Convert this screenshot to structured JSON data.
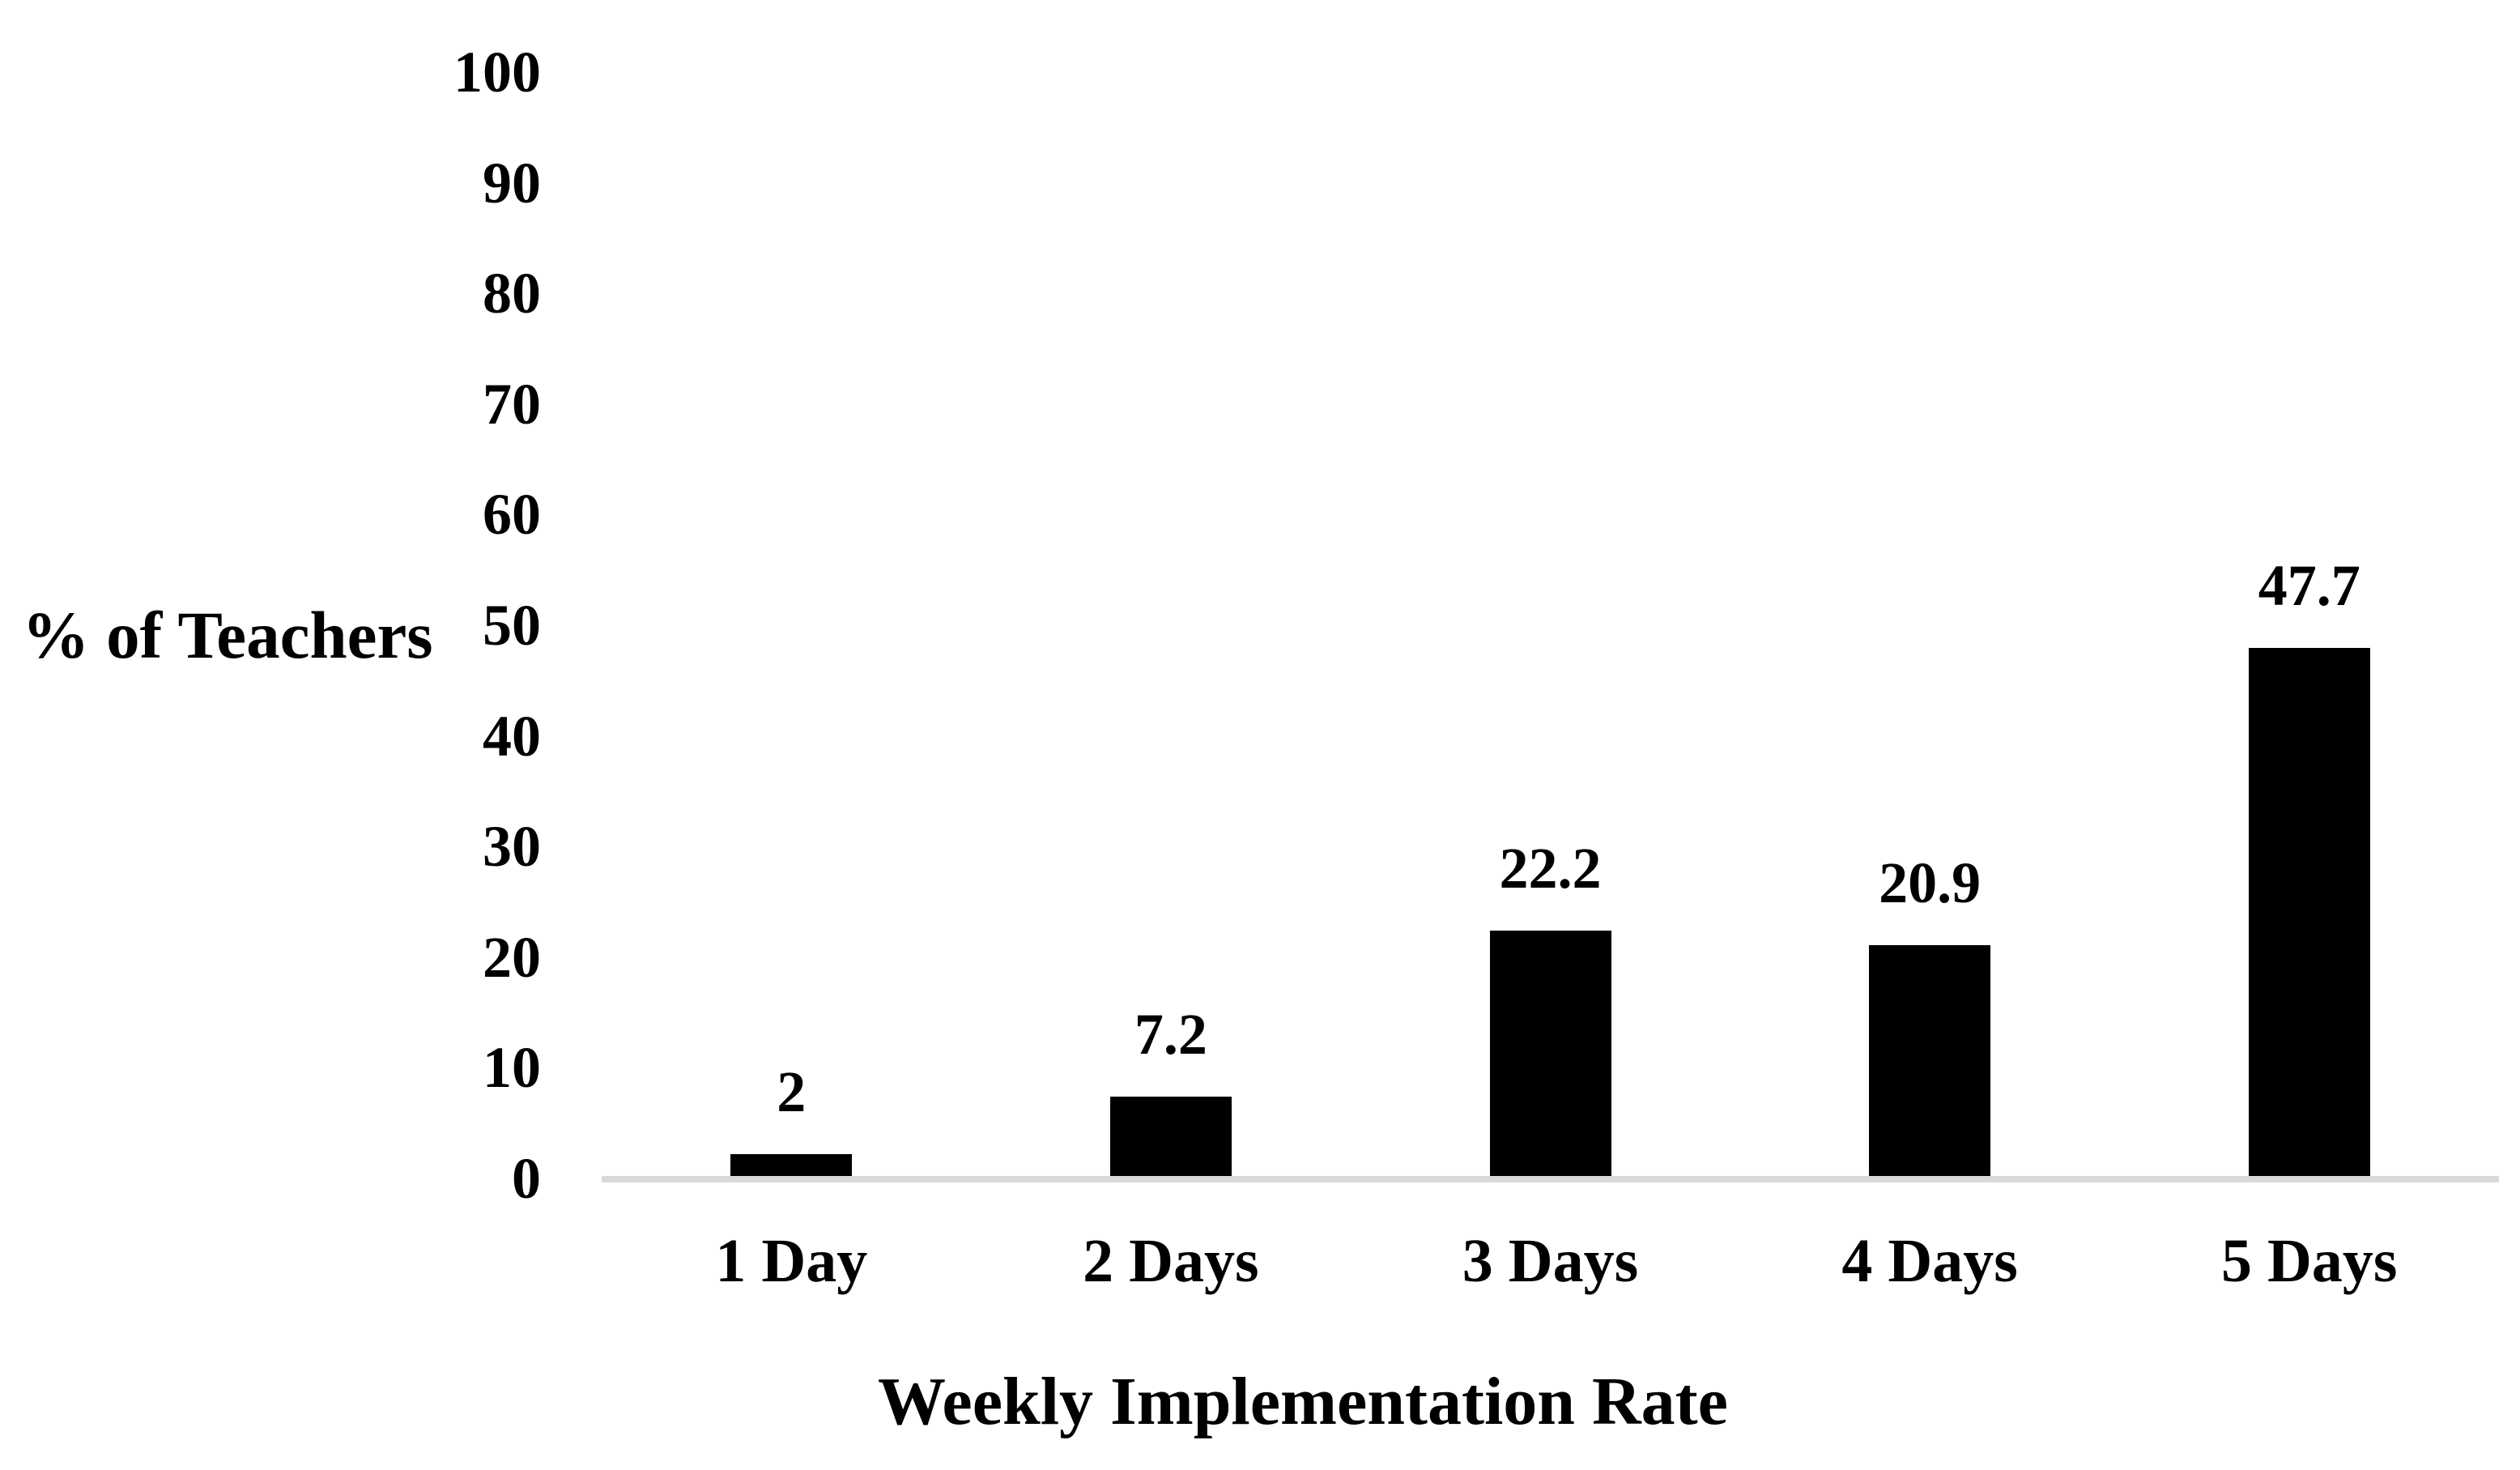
{
  "chart_data": {
    "type": "bar",
    "title": "",
    "categories": [
      "1 Day",
      "2 Days",
      "3 Days",
      "4 Days",
      "5 Days"
    ],
    "values": [
      2,
      7.2,
      22.2,
      20.9,
      47.7
    ],
    "data_labels": [
      "2",
      "7.2",
      "22.2",
      "20.9",
      "47.7"
    ],
    "xlabel": "Weekly Implementation Rate",
    "ylabel": "% of Teachers",
    "ylim": [
      0,
      100
    ],
    "ytick_step": 10,
    "yticks": [
      0,
      10,
      20,
      30,
      40,
      50,
      60,
      70,
      80,
      90,
      100
    ],
    "ytick_labels": [
      "0",
      "10",
      "20",
      "30",
      "40",
      "50",
      "60",
      "70",
      "80",
      "90",
      "100"
    ],
    "grid": false,
    "legend": "none",
    "style": {
      "bar_color": "#000000",
      "axis_line_color": "#d9d9d9",
      "text_color": "#000000",
      "background": "#ffffff"
    }
  }
}
